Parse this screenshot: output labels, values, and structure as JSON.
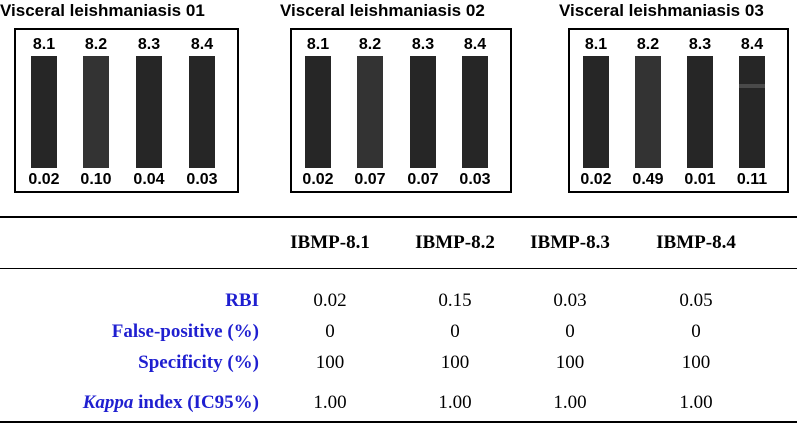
{
  "panels": [
    {
      "title": "Visceral leishmaniasis 01",
      "strips": [
        {
          "label": "8.1",
          "value": "0.02"
        },
        {
          "label": "8.2",
          "value": "0.10"
        },
        {
          "label": "8.3",
          "value": "0.04"
        },
        {
          "label": "8.4",
          "value": "0.03"
        }
      ]
    },
    {
      "title": "Visceral leishmaniasis 02",
      "strips": [
        {
          "label": "8.1",
          "value": "0.02"
        },
        {
          "label": "8.2",
          "value": "0.07"
        },
        {
          "label": "8.3",
          "value": "0.07"
        },
        {
          "label": "8.4",
          "value": "0.03"
        }
      ]
    },
    {
      "title": "Visceral leishmaniasis 03",
      "strips": [
        {
          "label": "8.1",
          "value": "0.02"
        },
        {
          "label": "8.2",
          "value": "0.49"
        },
        {
          "label": "8.3",
          "value": "0.01"
        },
        {
          "label": "8.4",
          "value": "0.11"
        }
      ]
    }
  ],
  "table": {
    "columns": [
      "IBMP-8.1",
      "IBMP-8.2",
      "IBMP-8.3",
      "IBMP-8.4"
    ],
    "rows": [
      {
        "label": "RBI",
        "values": [
          "0.02",
          "0.15",
          "0.03",
          "0.05"
        ]
      },
      {
        "label": "False-positive (%)",
        "values": [
          "0",
          "0",
          "0",
          "0"
        ]
      },
      {
        "label": "Specificity (%)",
        "values": [
          "100",
          "100",
          "100",
          "100"
        ]
      },
      {
        "label_italic": "Kappa",
        "label_rest": " index (IC95%)",
        "values": [
          "1.00",
          "1.00",
          "1.00",
          "1.00"
        ]
      }
    ]
  },
  "colors": {
    "label_blue": "#1f1fd0",
    "strip_dark": "#262626"
  }
}
